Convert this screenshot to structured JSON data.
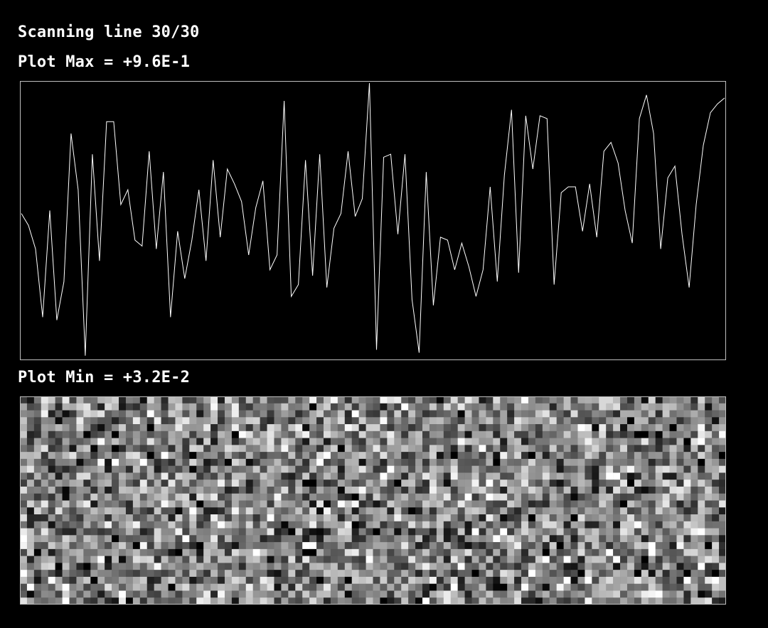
{
  "status": {
    "prefix": "Scanning line",
    "current_line": 30,
    "total_lines": 30,
    "text": "Scanning line 30/30"
  },
  "plot_max_label": "Plot Max = +9.6E-1",
  "plot_min_label": "Plot Min = +3.2E-2",
  "colors": {
    "background": "#000000",
    "foreground": "#ffffff",
    "frame": "#bfbfbf"
  },
  "chart_data": [
    {
      "type": "line",
      "title": "",
      "xlabel": "",
      "ylabel": "",
      "ylim": [
        0.032,
        0.96
      ],
      "grid": false,
      "legend": "none",
      "x": [
        0,
        1,
        2,
        3,
        4,
        5,
        6,
        7,
        8,
        9,
        10,
        11,
        12,
        13,
        14,
        15,
        16,
        17,
        18,
        19,
        20,
        21,
        22,
        23,
        24,
        25,
        26,
        27,
        28,
        29,
        30,
        31,
        32,
        33,
        34,
        35,
        36,
        37,
        38,
        39,
        40,
        41,
        42,
        43,
        44,
        45,
        46,
        47,
        48,
        49,
        50,
        51,
        52,
        53,
        54,
        55,
        56,
        57,
        58,
        59,
        60,
        61,
        62,
        63,
        64,
        65,
        66,
        67,
        68,
        69,
        70,
        71,
        72,
        73,
        74,
        75,
        76,
        77,
        78,
        79,
        80,
        81,
        82,
        83,
        84,
        85,
        86,
        87,
        88,
        89,
        90,
        91,
        92,
        93,
        94,
        95,
        96,
        97,
        98,
        99
      ],
      "series": [
        {
          "name": "",
          "values": [
            0.52,
            0.48,
            0.4,
            0.17,
            0.53,
            0.16,
            0.29,
            0.79,
            0.6,
            0.04,
            0.72,
            0.36,
            0.83,
            0.83,
            0.55,
            0.6,
            0.43,
            0.41,
            0.73,
            0.4,
            0.66,
            0.17,
            0.46,
            0.3,
            0.43,
            0.6,
            0.36,
            0.7,
            0.44,
            0.67,
            0.62,
            0.56,
            0.38,
            0.54,
            0.63,
            0.33,
            0.38,
            0.9,
            0.24,
            0.28,
            0.7,
            0.31,
            0.72,
            0.27,
            0.47,
            0.52,
            0.73,
            0.51,
            0.57,
            0.96,
            0.06,
            0.71,
            0.72,
            0.45,
            0.72,
            0.23,
            0.05,
            0.66,
            0.21,
            0.44,
            0.43,
            0.33,
            0.42,
            0.34,
            0.24,
            0.33,
            0.61,
            0.29,
            0.65,
            0.87,
            0.32,
            0.85,
            0.67,
            0.85,
            0.84,
            0.28,
            0.59,
            0.61,
            0.61,
            0.46,
            0.62,
            0.44,
            0.73,
            0.76,
            0.69,
            0.53,
            0.42,
            0.84,
            0.92,
            0.79,
            0.4,
            0.64,
            0.68,
            0.45,
            0.27,
            0.55,
            0.75,
            0.86,
            0.89,
            0.91
          ]
        }
      ]
    },
    {
      "type": "heatmap",
      "title": "",
      "xlabel": "",
      "ylabel": "",
      "colormap": "grayscale",
      "value_range": [
        0.032,
        0.96
      ],
      "rows": 30,
      "cols": 100,
      "seed": 42
    }
  ]
}
